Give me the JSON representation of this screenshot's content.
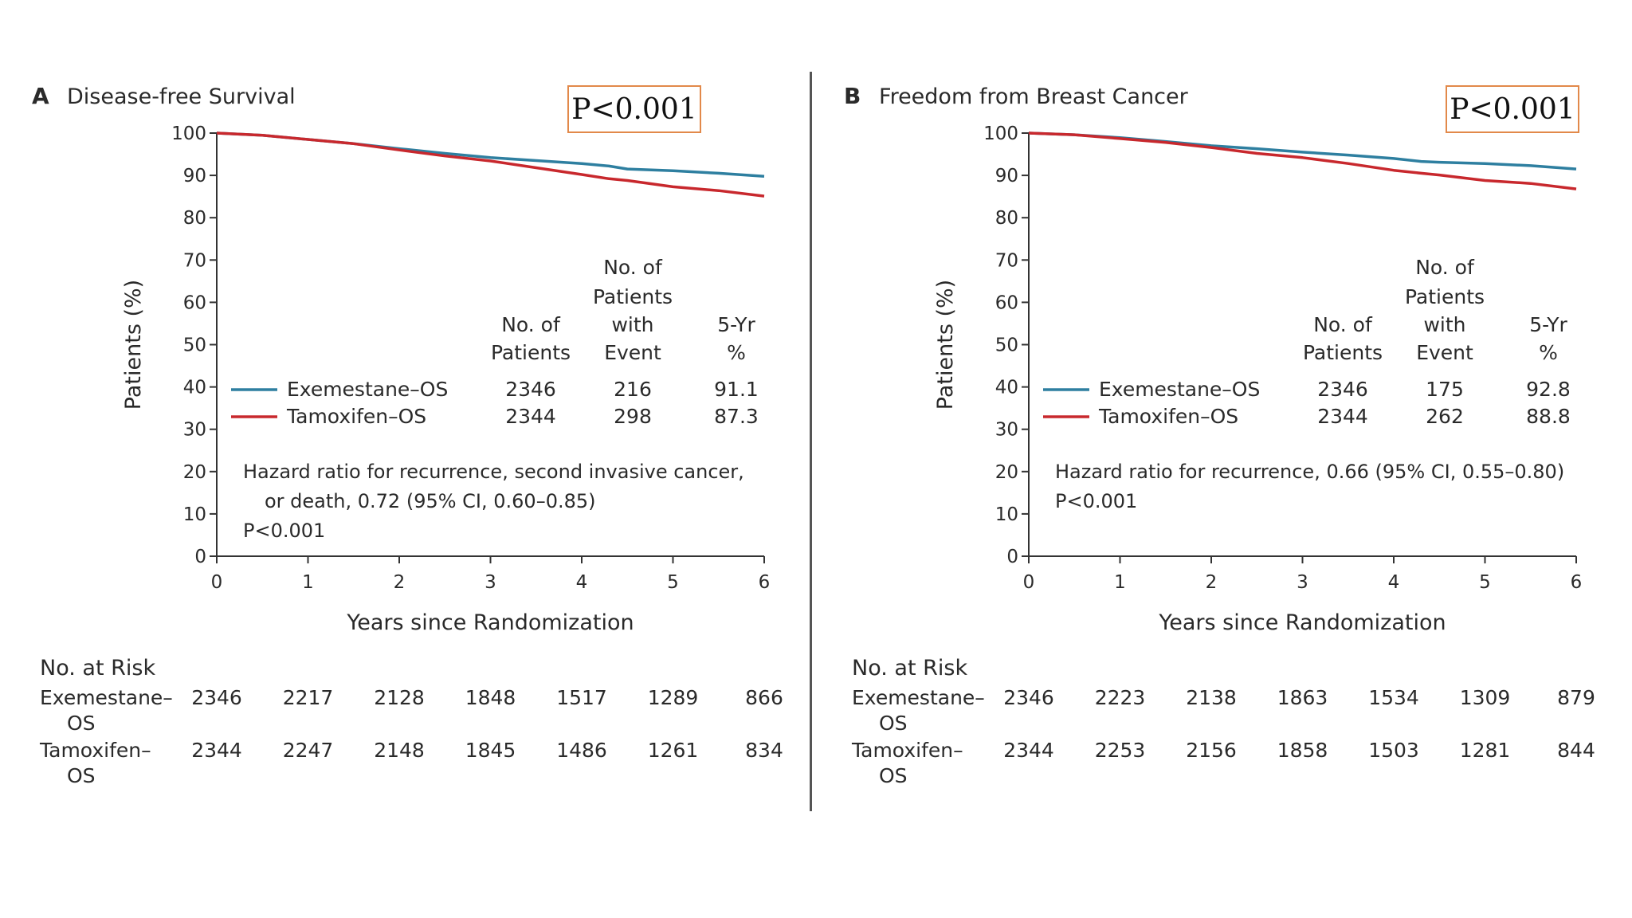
{
  "chart_data": [
    {
      "type": "line",
      "panel_letter": "A",
      "title": "Disease-free Survival",
      "xlabel": "Years since Randomization",
      "ylabel": "Patients (%)",
      "xlim": [
        0,
        6
      ],
      "ylim": [
        0,
        100
      ],
      "x_ticks": [
        "0",
        "1",
        "2",
        "3",
        "4",
        "5",
        "6"
      ],
      "y_ticks": [
        "0",
        "10",
        "20",
        "30",
        "40",
        "50",
        "60",
        "70",
        "80",
        "90",
        "100"
      ],
      "p_box": "P<0.001",
      "table_headers": {
        "patients": [
          "No. of",
          "Patients"
        ],
        "events": [
          "No. of",
          "Patients",
          "with",
          "Event"
        ],
        "rate": [
          "5-Yr",
          "%"
        ]
      },
      "series": [
        {
          "name": "Exemestane–OS",
          "color": "#2e7fa0",
          "patients": "2346",
          "events": "216",
          "five_yr": "91.1",
          "x": [
            0,
            0.5,
            1,
            1.5,
            2,
            2.5,
            3,
            3.5,
            4,
            4.3,
            4.5,
            5,
            5.5,
            6
          ],
          "values": [
            100,
            99.5,
            98.5,
            97.5,
            96.3,
            95.2,
            94.2,
            93.5,
            92.8,
            92.2,
            91.5,
            91.1,
            90.5,
            89.8
          ]
        },
        {
          "name": "Tamoxifen–OS",
          "color": "#c8282d",
          "patients": "2344",
          "events": "298",
          "five_yr": "87.3",
          "x": [
            0,
            0.5,
            1,
            1.5,
            2,
            2.5,
            3,
            3.5,
            4,
            4.3,
            4.5,
            5,
            5.5,
            6
          ],
          "values": [
            100,
            99.5,
            98.5,
            97.5,
            96,
            94.6,
            93.4,
            91.8,
            90.2,
            89.2,
            88.8,
            87.3,
            86.4,
            85.1
          ]
        }
      ],
      "annotation": [
        "Hazard ratio for recurrence, second invasive cancer,",
        "or death, 0.72 (95% CI, 0.60–0.85)",
        "P<0.001"
      ],
      "risk_title": "No. at Risk",
      "risk_rows": [
        {
          "label": [
            "Exemestane–",
            "OS"
          ],
          "values": [
            "2346",
            "2217",
            "2128",
            "1848",
            "1517",
            "1289",
            "866"
          ]
        },
        {
          "label": [
            "Tamoxifen–",
            "OS"
          ],
          "values": [
            "2344",
            "2247",
            "2148",
            "1845",
            "1486",
            "1261",
            "834"
          ]
        }
      ]
    },
    {
      "type": "line",
      "panel_letter": "B",
      "title": "Freedom from Breast Cancer",
      "xlabel": "Years since Randomization",
      "ylabel": "Patients (%)",
      "xlim": [
        0,
        6
      ],
      "ylim": [
        0,
        100
      ],
      "x_ticks": [
        "0",
        "1",
        "2",
        "3",
        "4",
        "5",
        "6"
      ],
      "y_ticks": [
        "0",
        "10",
        "20",
        "30",
        "40",
        "50",
        "60",
        "70",
        "80",
        "90",
        "100"
      ],
      "p_box": "P<0.001",
      "table_headers": {
        "patients": [
          "No. of",
          "Patients"
        ],
        "events": [
          "No. of",
          "Patients",
          "with",
          "Event"
        ],
        "rate": [
          "5-Yr",
          "%"
        ]
      },
      "series": [
        {
          "name": "Exemestane–OS",
          "color": "#2e7fa0",
          "patients": "2346",
          "events": "175",
          "five_yr": "92.8",
          "x": [
            0,
            0.5,
            1,
            1.5,
            2,
            2.5,
            3,
            3.5,
            4,
            4.3,
            4.5,
            5,
            5.5,
            6
          ],
          "values": [
            100,
            99.6,
            98.9,
            98,
            97,
            96.3,
            95.5,
            94.8,
            94,
            93.3,
            93.1,
            92.8,
            92.3,
            91.5
          ]
        },
        {
          "name": "Tamoxifen–OS",
          "color": "#c8282d",
          "patients": "2344",
          "events": "262",
          "five_yr": "88.8",
          "x": [
            0,
            0.5,
            1,
            1.5,
            2,
            2.5,
            3,
            3.5,
            4,
            4.3,
            4.5,
            5,
            5.5,
            6
          ],
          "values": [
            100,
            99.6,
            98.7,
            97.8,
            96.6,
            95.2,
            94.2,
            92.8,
            91.2,
            90.5,
            90.1,
            88.8,
            88.1,
            86.8
          ]
        }
      ],
      "annotation": [
        "Hazard ratio for recurrence, 0.66 (95% CI, 0.55–0.80)",
        "P<0.001"
      ],
      "risk_title": "No. at Risk",
      "risk_rows": [
        {
          "label": [
            "Exemestane–",
            "OS"
          ],
          "values": [
            "2346",
            "2223",
            "2138",
            "1863",
            "1534",
            "1309",
            "879"
          ]
        },
        {
          "label": [
            "Tamoxifen–",
            "OS"
          ],
          "values": [
            "2344",
            "2253",
            "2156",
            "1858",
            "1503",
            "1281",
            "844"
          ]
        }
      ]
    }
  ]
}
